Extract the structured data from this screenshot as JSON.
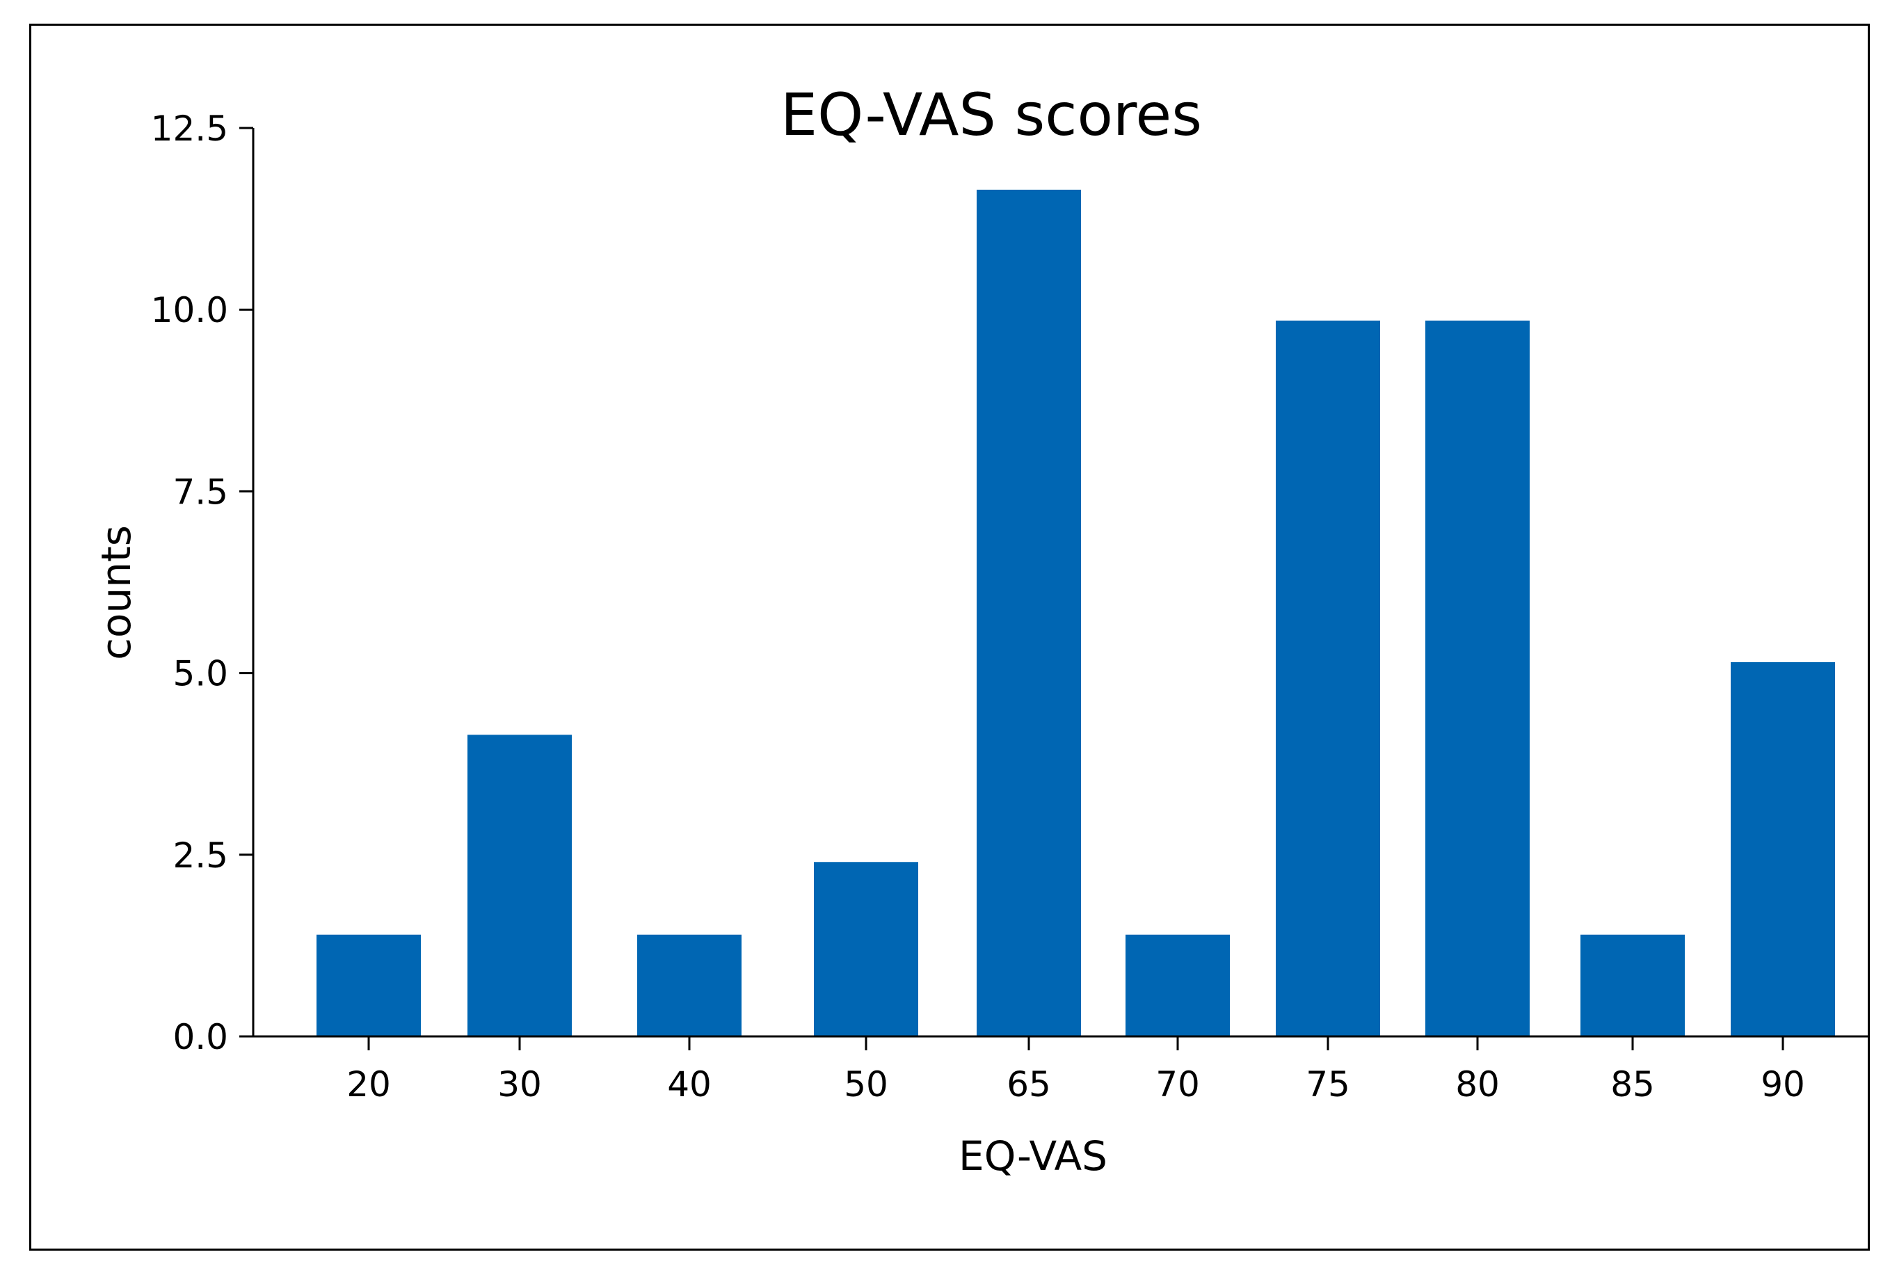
{
  "chart_data": {
    "type": "bar",
    "title": "EQ-VAS scores",
    "xlabel": "EQ-VAS",
    "ylabel": "counts",
    "categories": [
      "20",
      "30",
      "40",
      "50",
      "65",
      "70",
      "75",
      "80",
      "85",
      "90"
    ],
    "x": [
      20,
      30,
      40,
      50,
      65,
      70,
      75,
      80,
      85,
      90
    ],
    "values": [
      1.4,
      4.15,
      1.4,
      2.4,
      11.65,
      1.4,
      9.85,
      9.85,
      1.4,
      5.15
    ],
    "ylim": [
      0,
      12.5
    ],
    "yticks": [
      "0.0",
      "2.5",
      "5.0",
      "7.5",
      "10.0",
      "12.5"
    ],
    "bar_color": "#0066b3",
    "grid": false,
    "legend": "none"
  }
}
